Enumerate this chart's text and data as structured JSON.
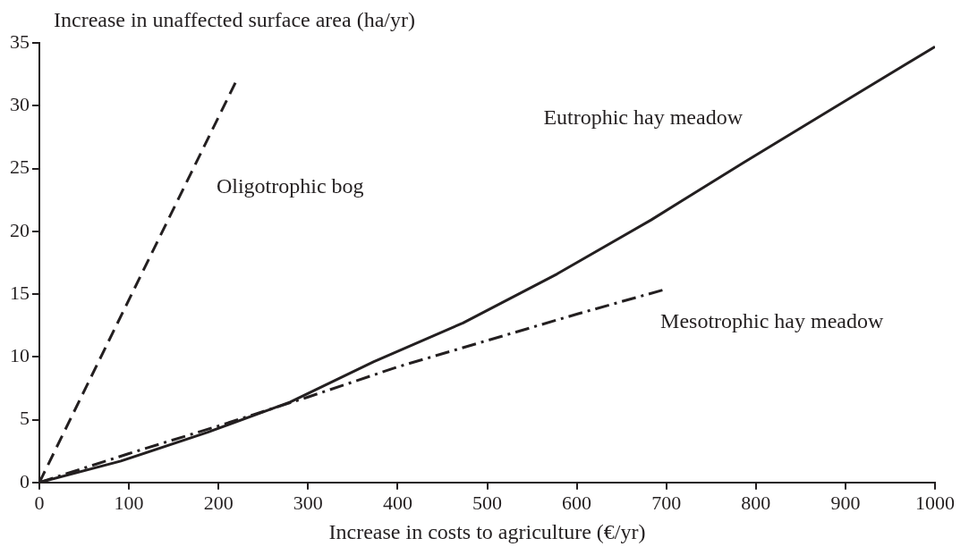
{
  "chart_data": {
    "type": "line",
    "xlabel": "Increase in costs to agriculture (€/yr)",
    "ylabel": "Increase in unaffected surface area (ha/yr)",
    "xlim": [
      0,
      1000
    ],
    "xticks": [
      0,
      100,
      200,
      300,
      400,
      500,
      600,
      700,
      800,
      900,
      1000
    ],
    "ylim": [
      0,
      35
    ],
    "yticks": [
      0,
      5,
      10,
      15,
      20,
      25,
      30,
      35
    ],
    "grid": false,
    "legend": false,
    "marker": "none",
    "series": [
      {
        "name": "Eutrophic hay meadow",
        "color": "#231f20",
        "line_style": "solid",
        "x": [
          0,
          91,
          188,
          280,
          373,
          473,
          578,
          683,
          787,
          891,
          1000
        ],
        "values": [
          0,
          1.7,
          4.0,
          6.4,
          9.6,
          12.7,
          16.6,
          20.9,
          25.5,
          30.0,
          34.7
        ]
      },
      {
        "name": "Oligotrophic bog",
        "color": "#231f20",
        "line_style": "dashed",
        "x": [
          0,
          220
        ],
        "values": [
          0,
          32
        ]
      },
      {
        "name": "Mesotrophic hay meadow",
        "color": "#231f20",
        "line_style": "dashdot",
        "x": [
          0,
          100,
          200,
          300,
          400,
          500,
          600,
          700
        ],
        "values": [
          0,
          2.3,
          4.5,
          6.8,
          9.2,
          11.3,
          13.4,
          15.4
        ]
      }
    ]
  }
}
